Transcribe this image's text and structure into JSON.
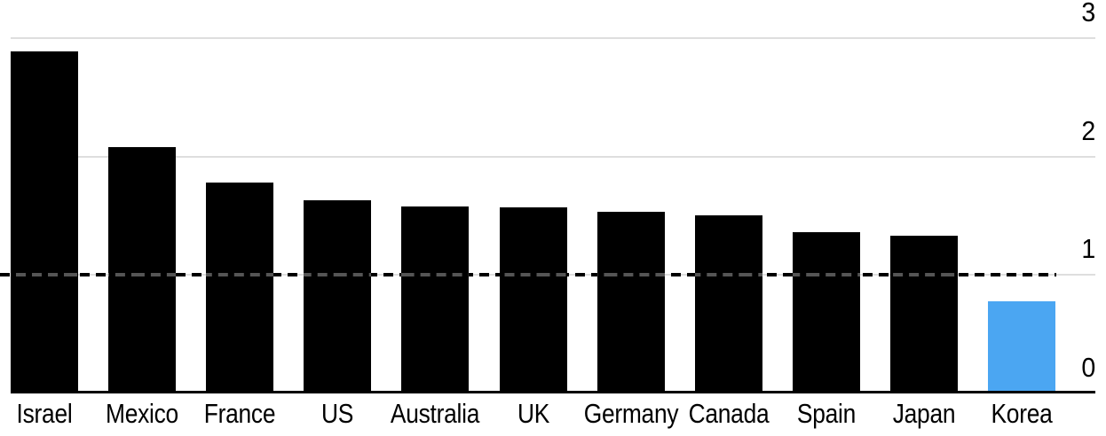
{
  "chart_data": {
    "type": "bar",
    "title": "",
    "xlabel": "",
    "ylabel": "",
    "categories": [
      "Israel",
      "Mexico",
      "France",
      "US",
      "Australia",
      "UK",
      "Germany",
      "Canada",
      "Spain",
      "Japan",
      "Korea"
    ],
    "values": [
      2.89,
      2.08,
      1.78,
      1.63,
      1.58,
      1.57,
      1.53,
      1.5,
      1.36,
      1.33,
      0.78
    ],
    "highlight_category": "Korea",
    "reference_line": {
      "value": 1.0,
      "style": "dashed"
    },
    "y_axis": {
      "side": "right",
      "ticks": [
        "0",
        "1",
        "2",
        "3"
      ],
      "ylim": [
        0,
        3
      ]
    },
    "grid": true,
    "legend_position": "none",
    "colors": {
      "bar": "#000000",
      "highlight": "#4BA6F2",
      "gridline": "#DEDEDE",
      "axis_line": "#000000",
      "dash_on_white": "#000000",
      "dash_on_bar": "#555555",
      "label": "#000000",
      "background": "#FFFFFF"
    }
  }
}
